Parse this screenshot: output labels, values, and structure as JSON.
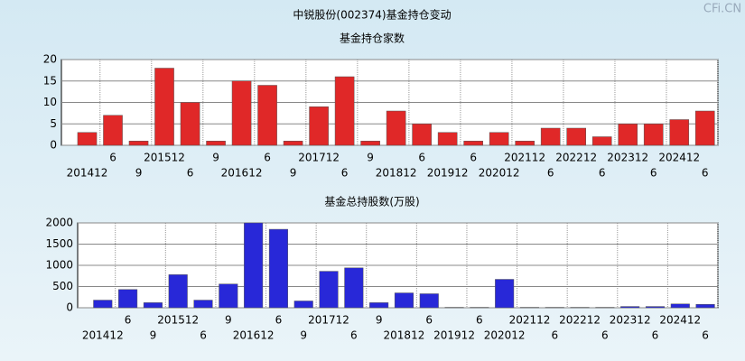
{
  "title": "中锐股份(002374)基金持仓变动",
  "watermark": "CFi.CN",
  "chart_data": [
    {
      "type": "bar",
      "title": "基金持仓家数",
      "color": "#e02828",
      "categories": [
        "201412",
        "6",
        "9",
        "201512",
        "6",
        "9",
        "201612",
        "6",
        "9",
        "201712",
        "6",
        "9",
        "201812",
        "6",
        "201912",
        "6",
        "202012",
        "202112",
        "6",
        "202212",
        "6",
        "202312",
        "6",
        "202412",
        "6"
      ],
      "values": [
        3,
        7,
        1,
        18,
        10,
        1,
        15,
        14,
        1,
        9,
        16,
        1,
        8,
        5,
        3,
        1,
        3,
        1,
        4,
        4,
        2,
        5,
        5,
        6,
        8
      ],
      "ylim": [
        0,
        20
      ],
      "yticks": [
        0,
        5,
        10,
        15,
        20
      ],
      "grid": true
    },
    {
      "type": "bar",
      "title": "基金总持股数(万股)",
      "color": "#2828d8",
      "categories": [
        "201412",
        "6",
        "9",
        "201512",
        "6",
        "9",
        "201612",
        "6",
        "9",
        "201712",
        "6",
        "9",
        "201812",
        "6",
        "201912",
        "6",
        "202012",
        "202112",
        "6",
        "202212",
        "6",
        "202312",
        "6",
        "202412",
        "6"
      ],
      "values": [
        180,
        430,
        120,
        780,
        180,
        560,
        2000,
        1850,
        160,
        860,
        940,
        120,
        350,
        330,
        10,
        10,
        670,
        10,
        10,
        10,
        10,
        30,
        30,
        90,
        80
      ],
      "ylim": [
        0,
        2000
      ],
      "yticks": [
        0,
        500,
        1000,
        1500,
        2000
      ],
      "grid": true
    }
  ]
}
